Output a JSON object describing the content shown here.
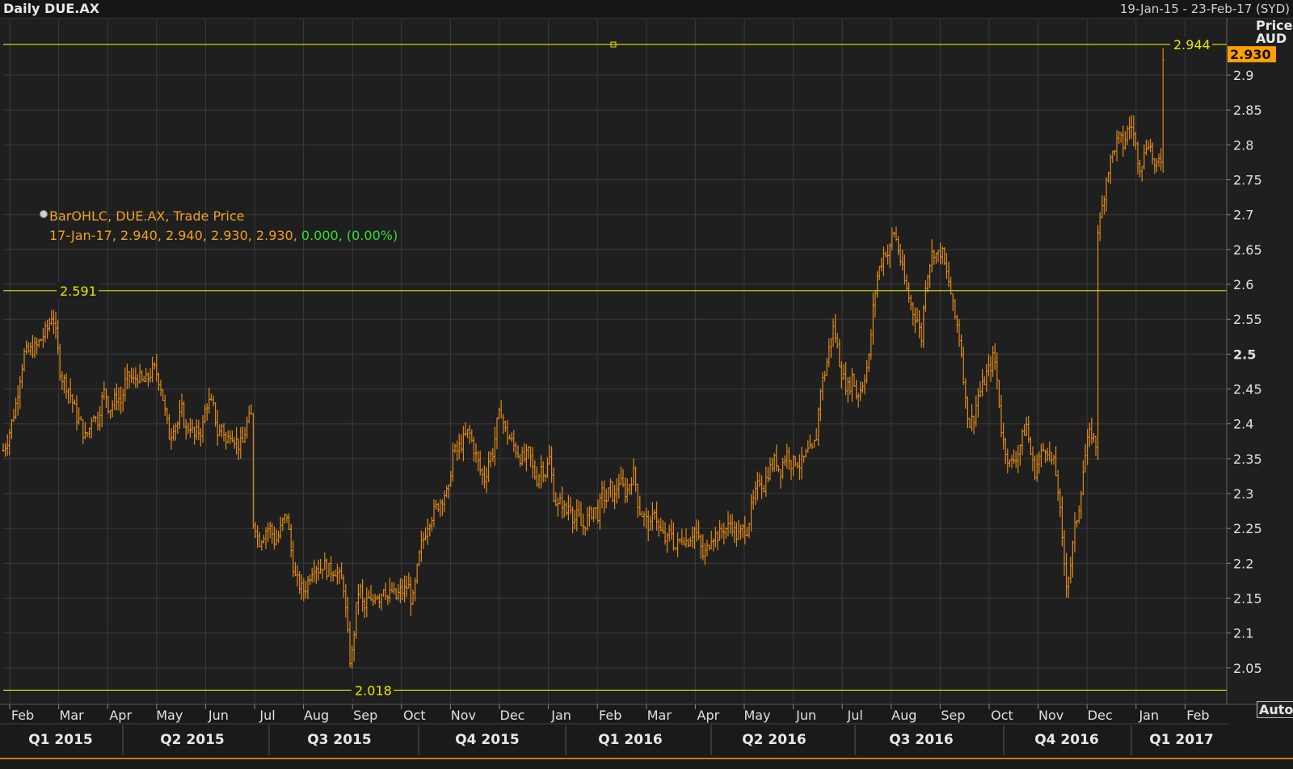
{
  "header": {
    "title": "Daily DUE.AX",
    "date_range": "19-Jan-15 - 23-Feb-17 (SYD)"
  },
  "legend": {
    "line1": "BarOHLC, DUE.AX, Trade Price",
    "line2_prefix": "17-Jan-17, 2.940, 2.940, 2.930, 2.930, ",
    "line2_change": "0.000, (0.00%)"
  },
  "axis": {
    "unit_line1": "Price",
    "unit_line2": "AUD",
    "auto_label": "Auto"
  },
  "colors": {
    "background": "#1f1f1f",
    "bars": "#e08a18",
    "reference_lines": "#e6e600",
    "grid": "#3a3a3a",
    "current_price_badge": "#ffa000"
  },
  "chart_data": {
    "type": "bar",
    "subtype": "ohlc",
    "ylim": [
      2.0,
      2.98
    ],
    "yticks": [
      2.05,
      2.1,
      2.15,
      2.2,
      2.25,
      2.3,
      2.35,
      2.4,
      2.45,
      2.5,
      2.55,
      2.6,
      2.65,
      2.7,
      2.75,
      2.8,
      2.85,
      2.9
    ],
    "ytick_labels": [
      "2.05",
      "2.1",
      "2.15",
      "2.2",
      "2.25",
      "2.3",
      "2.35",
      "2.4",
      "2.45",
      "2.5",
      "2.55",
      "2.6",
      "2.65",
      "2.7",
      "2.75",
      "2.8",
      "2.85",
      "2.9"
    ],
    "months": [
      "Feb",
      "Mar",
      "Apr",
      "May",
      "Jun",
      "Jul",
      "Aug",
      "Sep",
      "Oct",
      "Nov",
      "Dec",
      "Jan",
      "Feb",
      "Mar",
      "Apr",
      "May",
      "Jun",
      "Jul",
      "Aug",
      "Sep",
      "Oct",
      "Nov",
      "Dec",
      "Jan",
      "Feb"
    ],
    "quarters": [
      "Q1 2015",
      "Q2 2015",
      "Q3 2015",
      "Q4 2015",
      "Q1 2016",
      "Q2 2016",
      "Q3 2016",
      "Q4 2016",
      "Q1 2017"
    ],
    "reference_levels": [
      {
        "value": 2.944,
        "label": "2.944"
      },
      {
        "value": 2.591,
        "label": "2.591"
      },
      {
        "value": 2.018,
        "label": "2.018"
      }
    ],
    "last_price": {
      "value": 2.93,
      "label": "2.930"
    },
    "price_path": [
      [
        0,
        2.35
      ],
      [
        10,
        2.38
      ],
      [
        20,
        2.43
      ],
      [
        25,
        2.47
      ],
      [
        30,
        2.5
      ],
      [
        45,
        2.51
      ],
      [
        55,
        2.53
      ],
      [
        60,
        2.54
      ],
      [
        65,
        2.56
      ],
      [
        70,
        2.52
      ],
      [
        75,
        2.47
      ],
      [
        80,
        2.46
      ],
      [
        85,
        2.45
      ],
      [
        90,
        2.43
      ],
      [
        95,
        2.41
      ],
      [
        100,
        2.4
      ],
      [
        105,
        2.38
      ],
      [
        110,
        2.39
      ],
      [
        115,
        2.42
      ],
      [
        120,
        2.4
      ],
      [
        125,
        2.43
      ],
      [
        130,
        2.45
      ],
      [
        135,
        2.42
      ],
      [
        140,
        2.43
      ],
      [
        145,
        2.44
      ],
      [
        150,
        2.43
      ],
      [
        155,
        2.46
      ],
      [
        160,
        2.47
      ],
      [
        165,
        2.46
      ],
      [
        170,
        2.47
      ],
      [
        175,
        2.46
      ],
      [
        180,
        2.46
      ],
      [
        185,
        2.47
      ],
      [
        190,
        2.48
      ],
      [
        195,
        2.47
      ],
      [
        200,
        2.45
      ],
      [
        205,
        2.41
      ],
      [
        210,
        2.38
      ],
      [
        215,
        2.4
      ],
      [
        220,
        2.4
      ],
      [
        225,
        2.42
      ],
      [
        230,
        2.39
      ],
      [
        235,
        2.4
      ],
      [
        240,
        2.38
      ],
      [
        245,
        2.39
      ],
      [
        250,
        2.39
      ],
      [
        255,
        2.43
      ],
      [
        260,
        2.43
      ],
      [
        265,
        2.42
      ],
      [
        270,
        2.38
      ],
      [
        275,
        2.4
      ],
      [
        280,
        2.37
      ],
      [
        285,
        2.39
      ],
      [
        290,
        2.38
      ],
      [
        295,
        2.37
      ],
      [
        300,
        2.37
      ],
      [
        305,
        2.4
      ],
      [
        310,
        2.41
      ],
      [
        315,
        2.26
      ],
      [
        320,
        2.23
      ],
      [
        325,
        2.24
      ],
      [
        330,
        2.25
      ],
      [
        335,
        2.25
      ],
      [
        340,
        2.23
      ],
      [
        345,
        2.24
      ],
      [
        350,
        2.26
      ],
      [
        355,
        2.27
      ],
      [
        360,
        2.22
      ],
      [
        365,
        2.18
      ],
      [
        370,
        2.17
      ],
      [
        375,
        2.16
      ],
      [
        380,
        2.17
      ],
      [
        385,
        2.19
      ],
      [
        390,
        2.2
      ],
      [
        395,
        2.19
      ],
      [
        400,
        2.2
      ],
      [
        405,
        2.19
      ],
      [
        410,
        2.19
      ],
      [
        415,
        2.19
      ],
      [
        420,
        2.18
      ],
      [
        425,
        2.17
      ],
      [
        430,
        2.1
      ],
      [
        434,
        2.05
      ],
      [
        438,
        2.1
      ],
      [
        442,
        2.15
      ],
      [
        445,
        2.17
      ],
      [
        450,
        2.13
      ],
      [
        455,
        2.15
      ],
      [
        460,
        2.14
      ],
      [
        465,
        2.16
      ],
      [
        470,
        2.15
      ],
      [
        475,
        2.17
      ],
      [
        480,
        2.15
      ],
      [
        485,
        2.16
      ],
      [
        490,
        2.15
      ],
      [
        495,
        2.16
      ],
      [
        500,
        2.16
      ],
      [
        505,
        2.17
      ],
      [
        510,
        2.14
      ],
      [
        515,
        2.18
      ],
      [
        520,
        2.22
      ],
      [
        525,
        2.24
      ],
      [
        530,
        2.26
      ],
      [
        535,
        2.27
      ],
      [
        540,
        2.28
      ],
      [
        545,
        2.29
      ],
      [
        550,
        2.3
      ],
      [
        555,
        2.3
      ],
      [
        560,
        2.36
      ],
      [
        565,
        2.36
      ],
      [
        570,
        2.37
      ],
      [
        575,
        2.38
      ],
      [
        580,
        2.39
      ],
      [
        585,
        2.37
      ],
      [
        590,
        2.35
      ],
      [
        595,
        2.33
      ],
      [
        600,
        2.32
      ],
      [
        605,
        2.35
      ],
      [
        610,
        2.36
      ],
      [
        615,
        2.4
      ],
      [
        620,
        2.42
      ],
      [
        625,
        2.39
      ],
      [
        630,
        2.38
      ],
      [
        635,
        2.37
      ],
      [
        640,
        2.36
      ],
      [
        645,
        2.35
      ],
      [
        650,
        2.35
      ],
      [
        655,
        2.36
      ],
      [
        660,
        2.33
      ],
      [
        665,
        2.32
      ],
      [
        670,
        2.34
      ],
      [
        675,
        2.33
      ],
      [
        680,
        2.35
      ],
      [
        685,
        2.3
      ],
      [
        690,
        2.28
      ],
      [
        695,
        2.29
      ],
      [
        700,
        2.27
      ],
      [
        705,
        2.29
      ],
      [
        710,
        2.26
      ],
      [
        715,
        2.27
      ],
      [
        720,
        2.25
      ],
      [
        725,
        2.26
      ],
      [
        730,
        2.27
      ],
      [
        735,
        2.28
      ],
      [
        740,
        2.27
      ],
      [
        745,
        2.3
      ],
      [
        750,
        2.29
      ],
      [
        755,
        2.31
      ],
      [
        760,
        2.29
      ],
      [
        765,
        2.32
      ],
      [
        770,
        2.31
      ],
      [
        775,
        2.3
      ],
      [
        780,
        2.32
      ],
      [
        785,
        2.33
      ],
      [
        790,
        2.28
      ],
      [
        795,
        2.27
      ],
      [
        800,
        2.26
      ],
      [
        805,
        2.25
      ],
      [
        810,
        2.28
      ],
      [
        815,
        2.25
      ],
      [
        820,
        2.24
      ],
      [
        825,
        2.23
      ],
      [
        830,
        2.25
      ],
      [
        835,
        2.22
      ],
      [
        840,
        2.23
      ],
      [
        845,
        2.24
      ],
      [
        850,
        2.23
      ],
      [
        855,
        2.24
      ],
      [
        860,
        2.25
      ],
      [
        865,
        2.23
      ],
      [
        870,
        2.21
      ],
      [
        875,
        2.22
      ],
      [
        880,
        2.24
      ],
      [
        885,
        2.24
      ],
      [
        890,
        2.24
      ],
      [
        895,
        2.25
      ],
      [
        900,
        2.25
      ],
      [
        905,
        2.26
      ],
      [
        910,
        2.24
      ],
      [
        915,
        2.24
      ],
      [
        920,
        2.25
      ],
      [
        925,
        2.25
      ],
      [
        930,
        2.28
      ],
      [
        935,
        2.3
      ],
      [
        940,
        2.32
      ],
      [
        945,
        2.31
      ],
      [
        950,
        2.33
      ],
      [
        955,
        2.34
      ],
      [
        960,
        2.35
      ],
      [
        965,
        2.33
      ],
      [
        970,
        2.35
      ],
      [
        975,
        2.36
      ],
      [
        980,
        2.34
      ],
      [
        985,
        2.35
      ],
      [
        990,
        2.34
      ],
      [
        995,
        2.35
      ],
      [
        1000,
        2.36
      ],
      [
        1005,
        2.36
      ],
      [
        1010,
        2.38
      ],
      [
        1015,
        2.45
      ],
      [
        1020,
        2.47
      ],
      [
        1025,
        2.5
      ],
      [
        1030,
        2.54
      ],
      [
        1035,
        2.52
      ],
      [
        1040,
        2.48
      ],
      [
        1045,
        2.46
      ],
      [
        1050,
        2.45
      ],
      [
        1055,
        2.47
      ],
      [
        1060,
        2.44
      ],
      [
        1065,
        2.45
      ],
      [
        1070,
        2.47
      ],
      [
        1075,
        2.49
      ],
      [
        1080,
        2.56
      ],
      [
        1085,
        2.61
      ],
      [
        1090,
        2.63
      ],
      [
        1095,
        2.65
      ],
      [
        1100,
        2.64
      ],
      [
        1105,
        2.68
      ],
      [
        1110,
        2.66
      ],
      [
        1115,
        2.63
      ],
      [
        1120,
        2.6
      ],
      [
        1125,
        2.58
      ],
      [
        1130,
        2.56
      ],
      [
        1135,
        2.55
      ],
      [
        1140,
        2.52
      ],
      [
        1145,
        2.6
      ],
      [
        1150,
        2.63
      ],
      [
        1155,
        2.65
      ],
      [
        1160,
        2.64
      ],
      [
        1165,
        2.65
      ],
      [
        1170,
        2.62
      ],
      [
        1175,
        2.6
      ],
      [
        1180,
        2.56
      ],
      [
        1185,
        2.54
      ],
      [
        1190,
        2.5
      ],
      [
        1195,
        2.43
      ],
      [
        1200,
        2.4
      ],
      [
        1205,
        2.41
      ],
      [
        1210,
        2.44
      ],
      [
        1215,
        2.45
      ],
      [
        1220,
        2.47
      ],
      [
        1225,
        2.48
      ],
      [
        1230,
        2.5
      ],
      [
        1235,
        2.45
      ],
      [
        1240,
        2.38
      ],
      [
        1245,
        2.36
      ],
      [
        1250,
        2.34
      ],
      [
        1255,
        2.35
      ],
      [
        1260,
        2.36
      ],
      [
        1265,
        2.38
      ],
      [
        1270,
        2.4
      ],
      [
        1275,
        2.36
      ],
      [
        1280,
        2.33
      ],
      [
        1285,
        2.35
      ],
      [
        1290,
        2.36
      ],
      [
        1295,
        2.37
      ],
      [
        1300,
        2.35
      ],
      [
        1305,
        2.34
      ],
      [
        1310,
        2.3
      ],
      [
        1315,
        2.22
      ],
      [
        1320,
        2.17
      ],
      [
        1325,
        2.2
      ],
      [
        1330,
        2.25
      ],
      [
        1335,
        2.28
      ],
      [
        1340,
        2.33
      ],
      [
        1345,
        2.37
      ],
      [
        1350,
        2.39
      ],
      [
        1355,
        2.37
      ],
      [
        1360,
        2.68
      ],
      [
        1365,
        2.72
      ],
      [
        1370,
        2.76
      ],
      [
        1375,
        2.78
      ],
      [
        1380,
        2.8
      ],
      [
        1385,
        2.81
      ],
      [
        1390,
        2.8
      ],
      [
        1395,
        2.82
      ],
      [
        1400,
        2.83
      ],
      [
        1405,
        2.8
      ],
      [
        1410,
        2.77
      ],
      [
        1415,
        2.78
      ],
      [
        1420,
        2.81
      ],
      [
        1425,
        2.79
      ],
      [
        1430,
        2.76
      ],
      [
        1435,
        2.78
      ],
      [
        1440,
        2.93
      ]
    ]
  }
}
